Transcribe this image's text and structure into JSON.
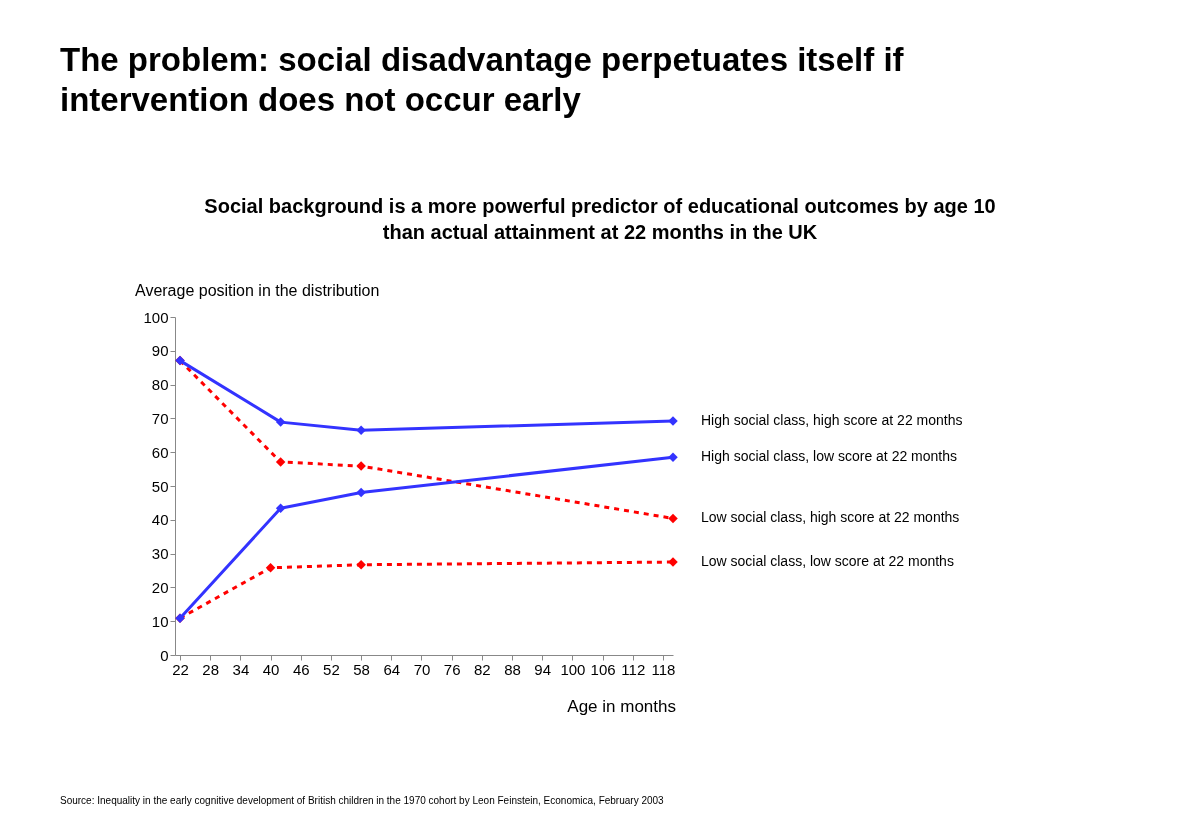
{
  "chart_data": {
    "type": "line",
    "title": "The problem:  social disadvantage perpetuates itself if intervention does not occur early",
    "subtitle": "Social background is a more powerful predictor of educational outcomes by age 10 than actual attainment at 22 months in the UK",
    "ylabel": "Average position in the distribution",
    "xlabel": "Age in months",
    "annotations": [
      "Source: Inequality in the early cognitive development of British children in the 1970 cohort by Leon Feinstein, Economica, February 2003"
    ],
    "xlim": [
      21,
      120
    ],
    "xticks": [
      22,
      28,
      34,
      40,
      46,
      52,
      58,
      64,
      70,
      76,
      82,
      88,
      94,
      100,
      106,
      112,
      118
    ],
    "ylim": [
      0,
      100
    ],
    "yticks": [
      0,
      10,
      20,
      30,
      40,
      50,
      60,
      70,
      80,
      90,
      100
    ],
    "grid": false,
    "legend": false,
    "marker": "diamond",
    "series": [
      {
        "name": "High social class, high score at 22 months",
        "color": "#3333ff",
        "line_style": "solid",
        "x": [
          22,
          42,
          58,
          120
        ],
        "values": [
          87.1,
          68.9,
          66.5,
          69.2
        ]
      },
      {
        "name": "High social class, low score at 22 months",
        "color": "#3333ff",
        "line_style": "solid",
        "x": [
          22,
          42,
          58,
          120
        ],
        "values": [
          10.9,
          43.4,
          48.1,
          58.5
        ]
      },
      {
        "name": "Low social class, high score at 22 months",
        "color": "#ff0000",
        "line_style": "dashed",
        "x": [
          22,
          42,
          58,
          120
        ],
        "values": [
          87.1,
          57.1,
          55.9,
          40.4
        ]
      },
      {
        "name": "Low social class, low score at 22 months",
        "color": "#ff0000",
        "line_style": "dashed",
        "x": [
          22,
          40,
          58,
          120
        ],
        "values": [
          10.9,
          25.8,
          26.7,
          27.5
        ]
      }
    ]
  }
}
